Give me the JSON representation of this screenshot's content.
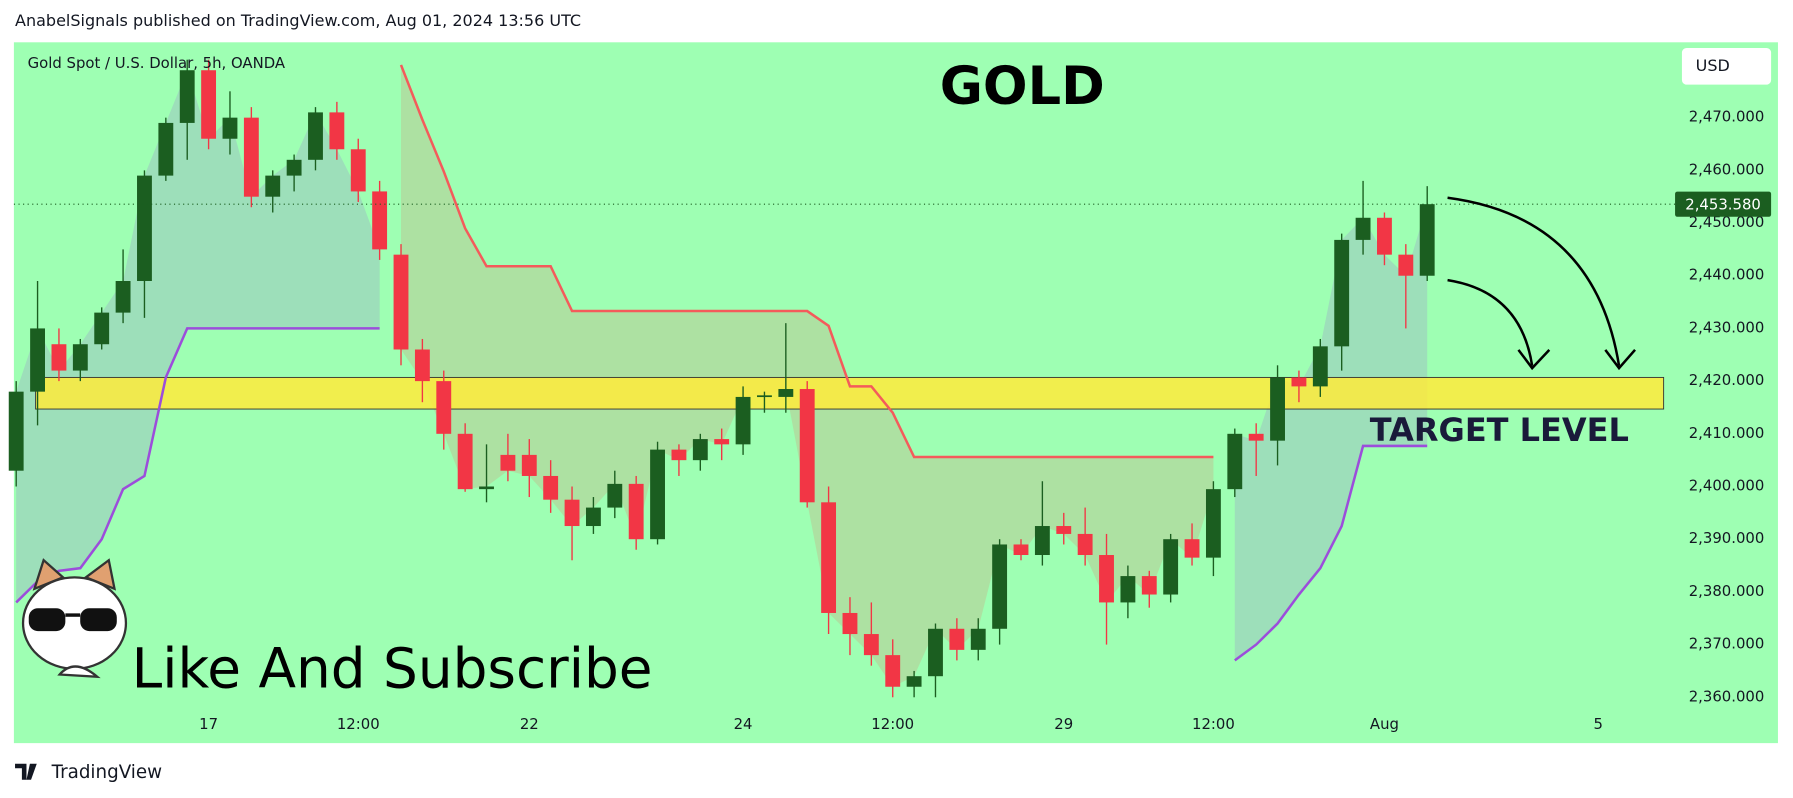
{
  "header": "AnabelSignals published on TradingView.com, Aug 01, 2024 13:56 UTC",
  "footer": "TradingView",
  "chart_data": {
    "type": "candlestick",
    "symbol": "Gold Spot / U.S. Dollar, 5h, OANDA",
    "title": "GOLD",
    "currency": "USD",
    "annotation": "Like And Subscribe",
    "target_label": "TARGET LEVEL",
    "target_zone": [
      2414.7,
      2420.7
    ],
    "target_color": "#ffeb3b",
    "categories": [
      null,
      null,
      null,
      null,
      null,
      null,
      null,
      null,
      null,
      "17",
      null,
      null,
      null,
      null,
      null,
      null,
      "12:00",
      null,
      null,
      null,
      null,
      null,
      null,
      null,
      "22",
      null,
      null,
      null,
      null,
      null,
      null,
      null,
      null,
      null,
      "24",
      null,
      null,
      null,
      null,
      null,
      null,
      "12:00",
      null,
      null,
      null,
      null,
      null,
      null,
      null,
      "29",
      null,
      null,
      null,
      null,
      null,
      null,
      "12:00",
      null,
      null,
      null,
      null,
      null,
      null,
      null,
      "Aug",
      null,
      null,
      null,
      null,
      null,
      null,
      null,
      null,
      null,
      "5",
      null,
      null
    ],
    "open": [
      2403,
      2418,
      2427,
      2422,
      2427,
      2433,
      2439,
      2459,
      2469,
      2479,
      2466,
      2470,
      2455,
      2459,
      2462,
      2471,
      2464,
      2456,
      2444,
      2426,
      2420,
      2410,
      2399.5,
      2406,
      2406,
      2402,
      2397.5,
      2392.5,
      2396,
      2400.5,
      2390,
      2407,
      2405,
      2409,
      2408,
      2417,
      2417,
      2418.5,
      2397,
      2376,
      2372,
      2368,
      2362,
      2364,
      2373,
      2369,
      2373,
      2389,
      2387,
      2392.5,
      2391,
      2387,
      2378,
      2383,
      2379.5,
      2390,
      2386.5,
      2399.5,
      2410,
      2408.7,
      2420.7,
      2419,
      2426.6,
      2446.8,
      2451,
      2444,
      2440,
      null,
      null,
      null,
      null,
      null,
      null,
      null,
      null,
      null,
      null
    ],
    "high": [
      2420,
      2439,
      2430,
      2428,
      2434,
      2445,
      2460,
      2470,
      2481,
      2481,
      2475,
      2472,
      2460,
      2463,
      2472,
      2473,
      2466,
      2458,
      2446,
      2428,
      2422,
      2412,
      2408,
      2410,
      2409,
      2405,
      2400,
      2398,
      2403,
      2402,
      2408.5,
      2408,
      2410,
      2411,
      2419,
      2418,
      2431,
      2420,
      2400,
      2379,
      2378,
      2371,
      2365,
      2374,
      2375,
      2375,
      2390,
      2390,
      2401,
      2395,
      2396,
      2391,
      2385,
      2384,
      2391,
      2393,
      2401,
      2411,
      2412,
      2423,
      2422,
      2428,
      2448,
      2458,
      2452,
      2446,
      2457,
      null,
      null,
      null,
      null,
      null,
      null,
      null,
      null,
      null,
      null
    ],
    "low": [
      2400,
      2411.6,
      2420,
      2420,
      2426,
      2431,
      2432,
      2458,
      2462,
      2464,
      2463,
      2453,
      2452,
      2456,
      2460,
      2462,
      2454,
      2443,
      2423,
      2416,
      2407,
      2399,
      2397,
      2401,
      2398,
      2395,
      2386,
      2391,
      2394,
      2388,
      2389,
      2402,
      2403,
      2405,
      2406,
      2414,
      2414,
      2396,
      2372,
      2368,
      2366,
      2360,
      2360,
      2360,
      2367,
      2367,
      2370,
      2386,
      2385,
      2389,
      2385,
      2370,
      2375,
      2377,
      2378,
      2385,
      2383,
      2398,
      2402,
      2404,
      2416,
      2417,
      2422,
      2444,
      2442,
      2430,
      2439,
      null,
      null,
      null,
      null,
      null,
      null,
      null,
      null,
      null,
      null
    ],
    "close": [
      2418,
      2430,
      2422,
      2427,
      2433,
      2439,
      2459,
      2469,
      2479,
      2466,
      2470,
      2455,
      2459,
      2462,
      2471,
      2464,
      2456,
      2445,
      2426,
      2420,
      2410,
      2399.5,
      2400,
      2403,
      2402,
      2397.5,
      2392.5,
      2396,
      2400.5,
      2390,
      2407,
      2405,
      2409,
      2408,
      2417,
      2417.3,
      2418.5,
      2397,
      2376,
      2372,
      2368,
      2362,
      2364,
      2373,
      2369,
      2373,
      2389,
      2387,
      2392.5,
      2391,
      2387,
      2378,
      2383,
      2379.5,
      2390,
      2386.5,
      2399.5,
      2410,
      2408.7,
      2420.7,
      2419,
      2426.6,
      2446.8,
      2451,
      2444,
      2440,
      2453.58,
      null,
      null,
      null,
      null,
      null,
      null,
      null,
      null,
      null,
      null
    ],
    "up_color": "#1b5e20",
    "down_color": "#f23645",
    "series": [
      {
        "color": "#f45b5b",
        "values": [
          null,
          null,
          null,
          null,
          null,
          null,
          null,
          null,
          null,
          null,
          null,
          null,
          null,
          null,
          null,
          null,
          null,
          null,
          2480,
          2469.6,
          2459.8,
          2449,
          2441.8,
          2441.8,
          2441.8,
          2441.8,
          2433.3,
          2433.3,
          2433.3,
          2433.3,
          2433.3,
          2433.3,
          2433.3,
          2433.3,
          2433.3,
          2433.3,
          2433.3,
          2433.3,
          2430.5,
          2419,
          2419,
          2414,
          2405.6,
          2405.6,
          2405.6,
          2405.6,
          2405.6,
          2405.6,
          2405.6,
          2405.6,
          2405.6,
          2405.6,
          2405.6,
          2405.6,
          2405.6,
          2405.6,
          2405.6,
          null,
          null,
          null,
          null,
          null,
          null,
          null,
          null,
          null,
          null,
          null,
          null,
          null,
          null,
          null,
          null,
          null,
          null,
          null,
          null
        ]
      },
      {
        "color": "#9c4ddb",
        "values": [
          2378,
          2382,
          2384,
          2384.5,
          2390,
          2399.5,
          2402,
          2420.7,
          2430,
          2430,
          2430,
          2430,
          2430,
          2430,
          2430,
          2430,
          2430,
          2430,
          null,
          null,
          null,
          null,
          null,
          null,
          null,
          null,
          null,
          null,
          null,
          null,
          null,
          null,
          null,
          null,
          null,
          null,
          null,
          null,
          null,
          null,
          null,
          null,
          null,
          null,
          null,
          null,
          null,
          null,
          null,
          null,
          null,
          null,
          null,
          null,
          null,
          null,
          null,
          2367,
          2370,
          2374,
          2379.5,
          2384.5,
          2392.5,
          2407.7,
          2407.7,
          2407.7,
          2407.7,
          null,
          null,
          null,
          null,
          null,
          null,
          null,
          null,
          null,
          null
        ]
      }
    ],
    "last_price": {
      "value": 2453.58,
      "label": "2,453.580"
    },
    "ylim": [
      2351.3,
      2484.3
    ],
    "yticks": [
      {
        "value": 2360,
        "label": "2,360.000"
      },
      {
        "value": 2370,
        "label": "2,370.000"
      },
      {
        "value": 2380,
        "label": "2,380.000"
      },
      {
        "value": 2390,
        "label": "2,390.000"
      },
      {
        "value": 2400,
        "label": "2,400.000"
      },
      {
        "value": 2410,
        "label": "2,410.000"
      },
      {
        "value": 2420,
        "label": "2,420.000"
      },
      {
        "value": 2430,
        "label": "2,430.000"
      },
      {
        "value": 2440,
        "label": "2,440.000"
      },
      {
        "value": 2450,
        "label": "2,450.000"
      },
      {
        "value": 2460,
        "label": "2,460.000"
      },
      {
        "value": 2470,
        "label": "2,470.000"
      }
    ],
    "background": "#9effb3"
  }
}
